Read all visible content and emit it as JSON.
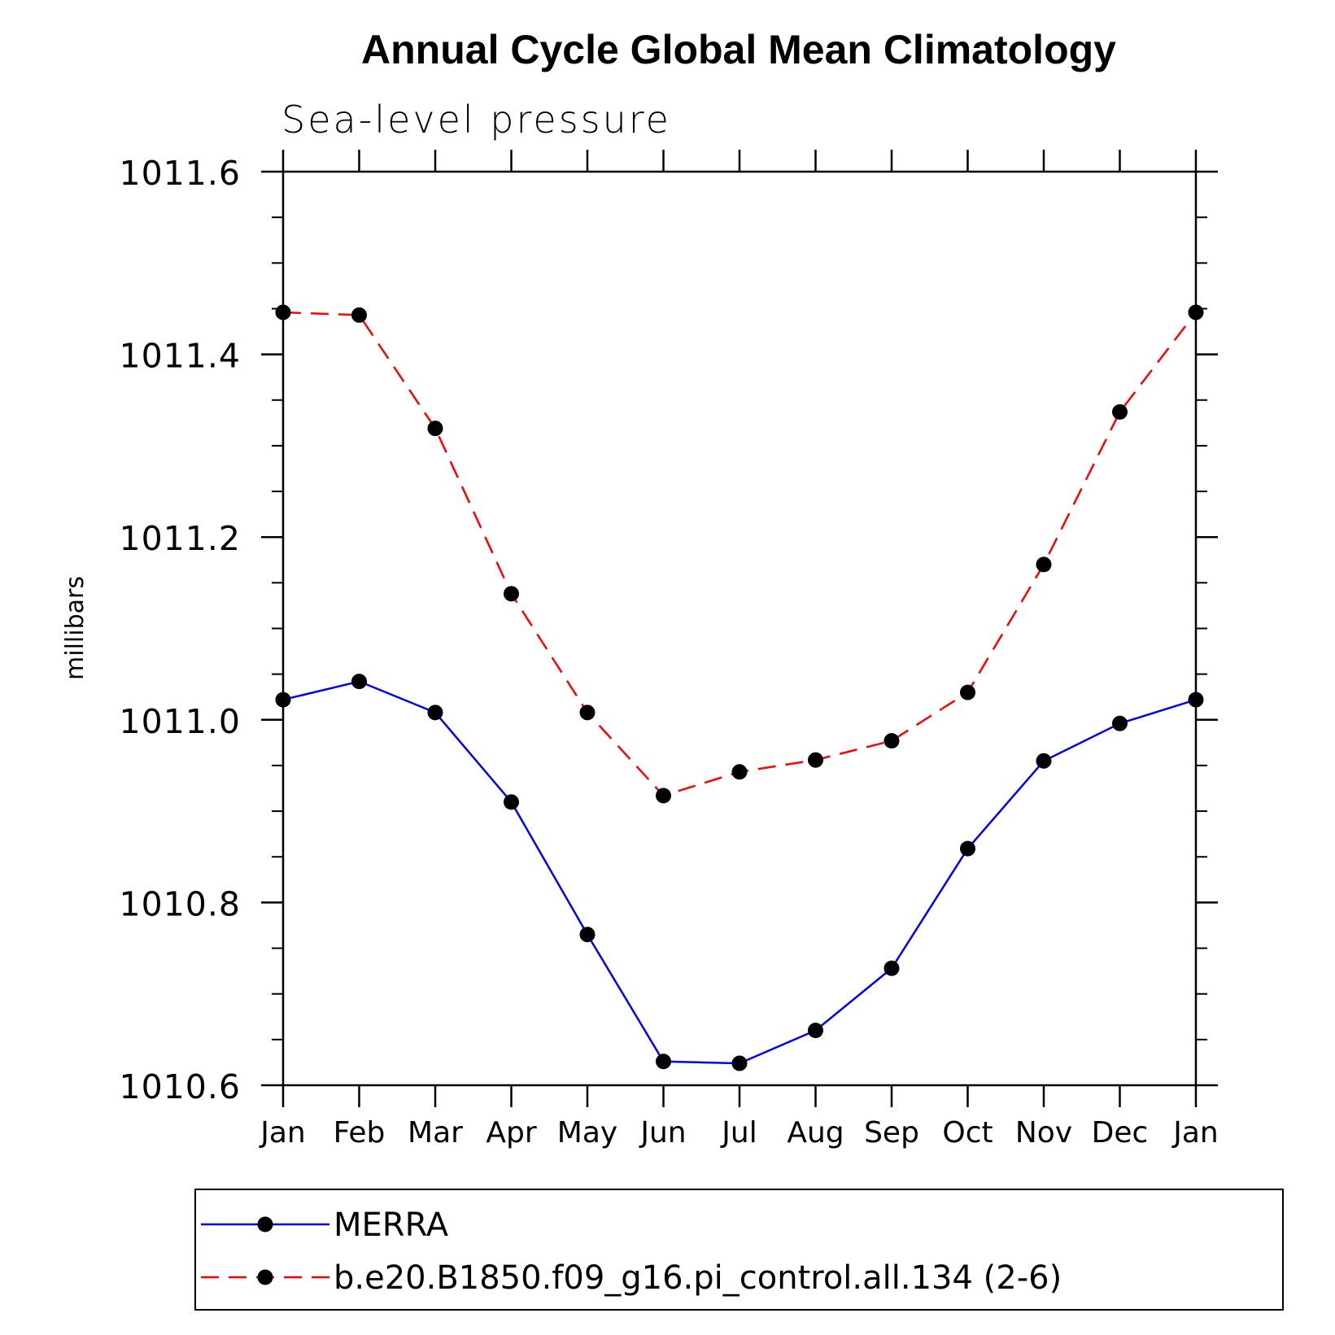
{
  "chart_data": {
    "type": "line",
    "title": "Annual Cycle Global Mean Climatology",
    "subtitle": "Sea-level pressure",
    "xlabel": "",
    "ylabel": "millibars",
    "categories": [
      "Jan",
      "Feb",
      "Mar",
      "Apr",
      "May",
      "Jun",
      "Jul",
      "Aug",
      "Sep",
      "Oct",
      "Nov",
      "Dec",
      "Jan"
    ],
    "ylim": [
      1010.6,
      1011.6
    ],
    "yticks": [
      "1010.6",
      "1010.8",
      "1011.0",
      "1011.2",
      "1011.4",
      "1011.6"
    ],
    "grid": false,
    "legend_position": "bottom",
    "series": [
      {
        "name": "MERRA",
        "color": "#0000ff",
        "line_style": "solid",
        "marker": "filled-circle",
        "values": [
          1011.022,
          1011.042,
          1011.008,
          1010.91,
          1010.765,
          1010.626,
          1010.624,
          1010.66,
          1010.728,
          1010.859,
          1010.955,
          1010.996,
          1011.022
        ]
      },
      {
        "name": "b.e20.B1850.f09_g16.pi_control.all.134 (2-6)",
        "color": "#ff0000",
        "line_style": "dashed",
        "marker": "filled-circle",
        "values": [
          1011.446,
          1011.443,
          1011.319,
          1011.138,
          1011.008,
          1010.917,
          1010.943,
          1010.956,
          1010.977,
          1011.03,
          1011.17,
          1011.337,
          1011.446
        ]
      }
    ]
  }
}
